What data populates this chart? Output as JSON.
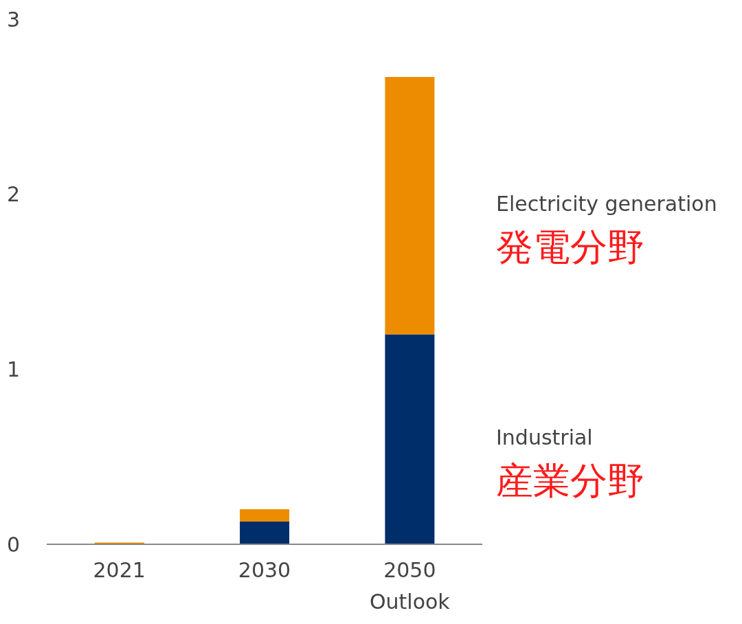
{
  "chart_data": {
    "type": "bar",
    "stacked": true,
    "categories": [
      "2021",
      "2030",
      "2050 Outlook"
    ],
    "series": [
      {
        "name": "Industrial",
        "color": "#002e6a",
        "values": [
          0,
          0.13,
          1.2
        ]
      },
      {
        "name": "Electricity generation",
        "color": "#ee8c00",
        "values": [
          0.01,
          0.07,
          1.47
        ]
      }
    ],
    "annotations": [
      "産業分野",
      "発電分野"
    ],
    "ylim": [
      0,
      3
    ],
    "yticks": [
      0,
      1,
      2,
      3
    ],
    "grid": false,
    "legend": false
  }
}
